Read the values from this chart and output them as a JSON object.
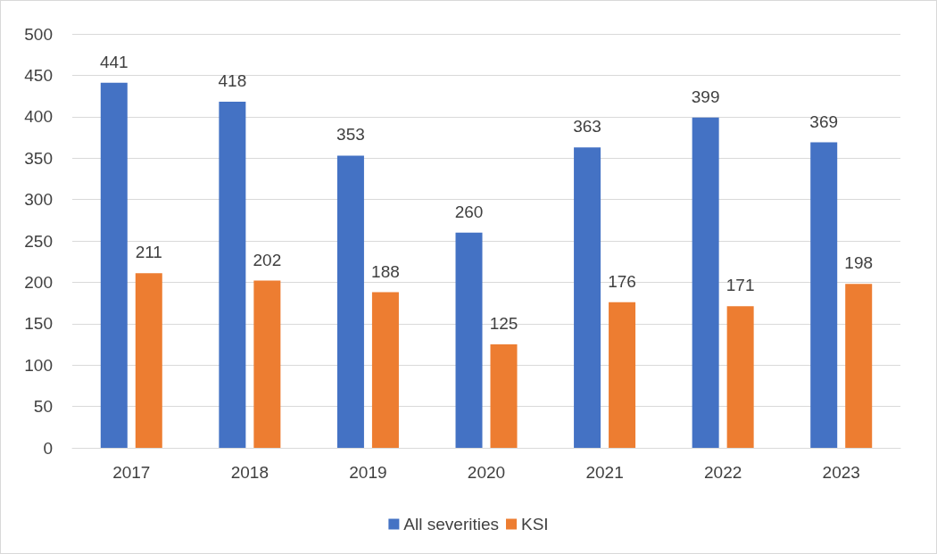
{
  "chart_data": {
    "type": "bar",
    "categories": [
      "2017",
      "2018",
      "2019",
      "2020",
      "2021",
      "2022",
      "2023"
    ],
    "series": [
      {
        "name": "All severities",
        "color": "#4472c4",
        "values": [
          441,
          418,
          353,
          260,
          363,
          399,
          369
        ]
      },
      {
        "name": "KSI",
        "color": "#ed7d31",
        "values": [
          211,
          202,
          188,
          125,
          176,
          171,
          198
        ]
      }
    ],
    "ylim": [
      0,
      500
    ],
    "yticks": [
      0,
      50,
      100,
      150,
      200,
      250,
      300,
      350,
      400,
      450,
      500
    ],
    "grid": "y",
    "legend": "bottom",
    "data_labels": true
  }
}
